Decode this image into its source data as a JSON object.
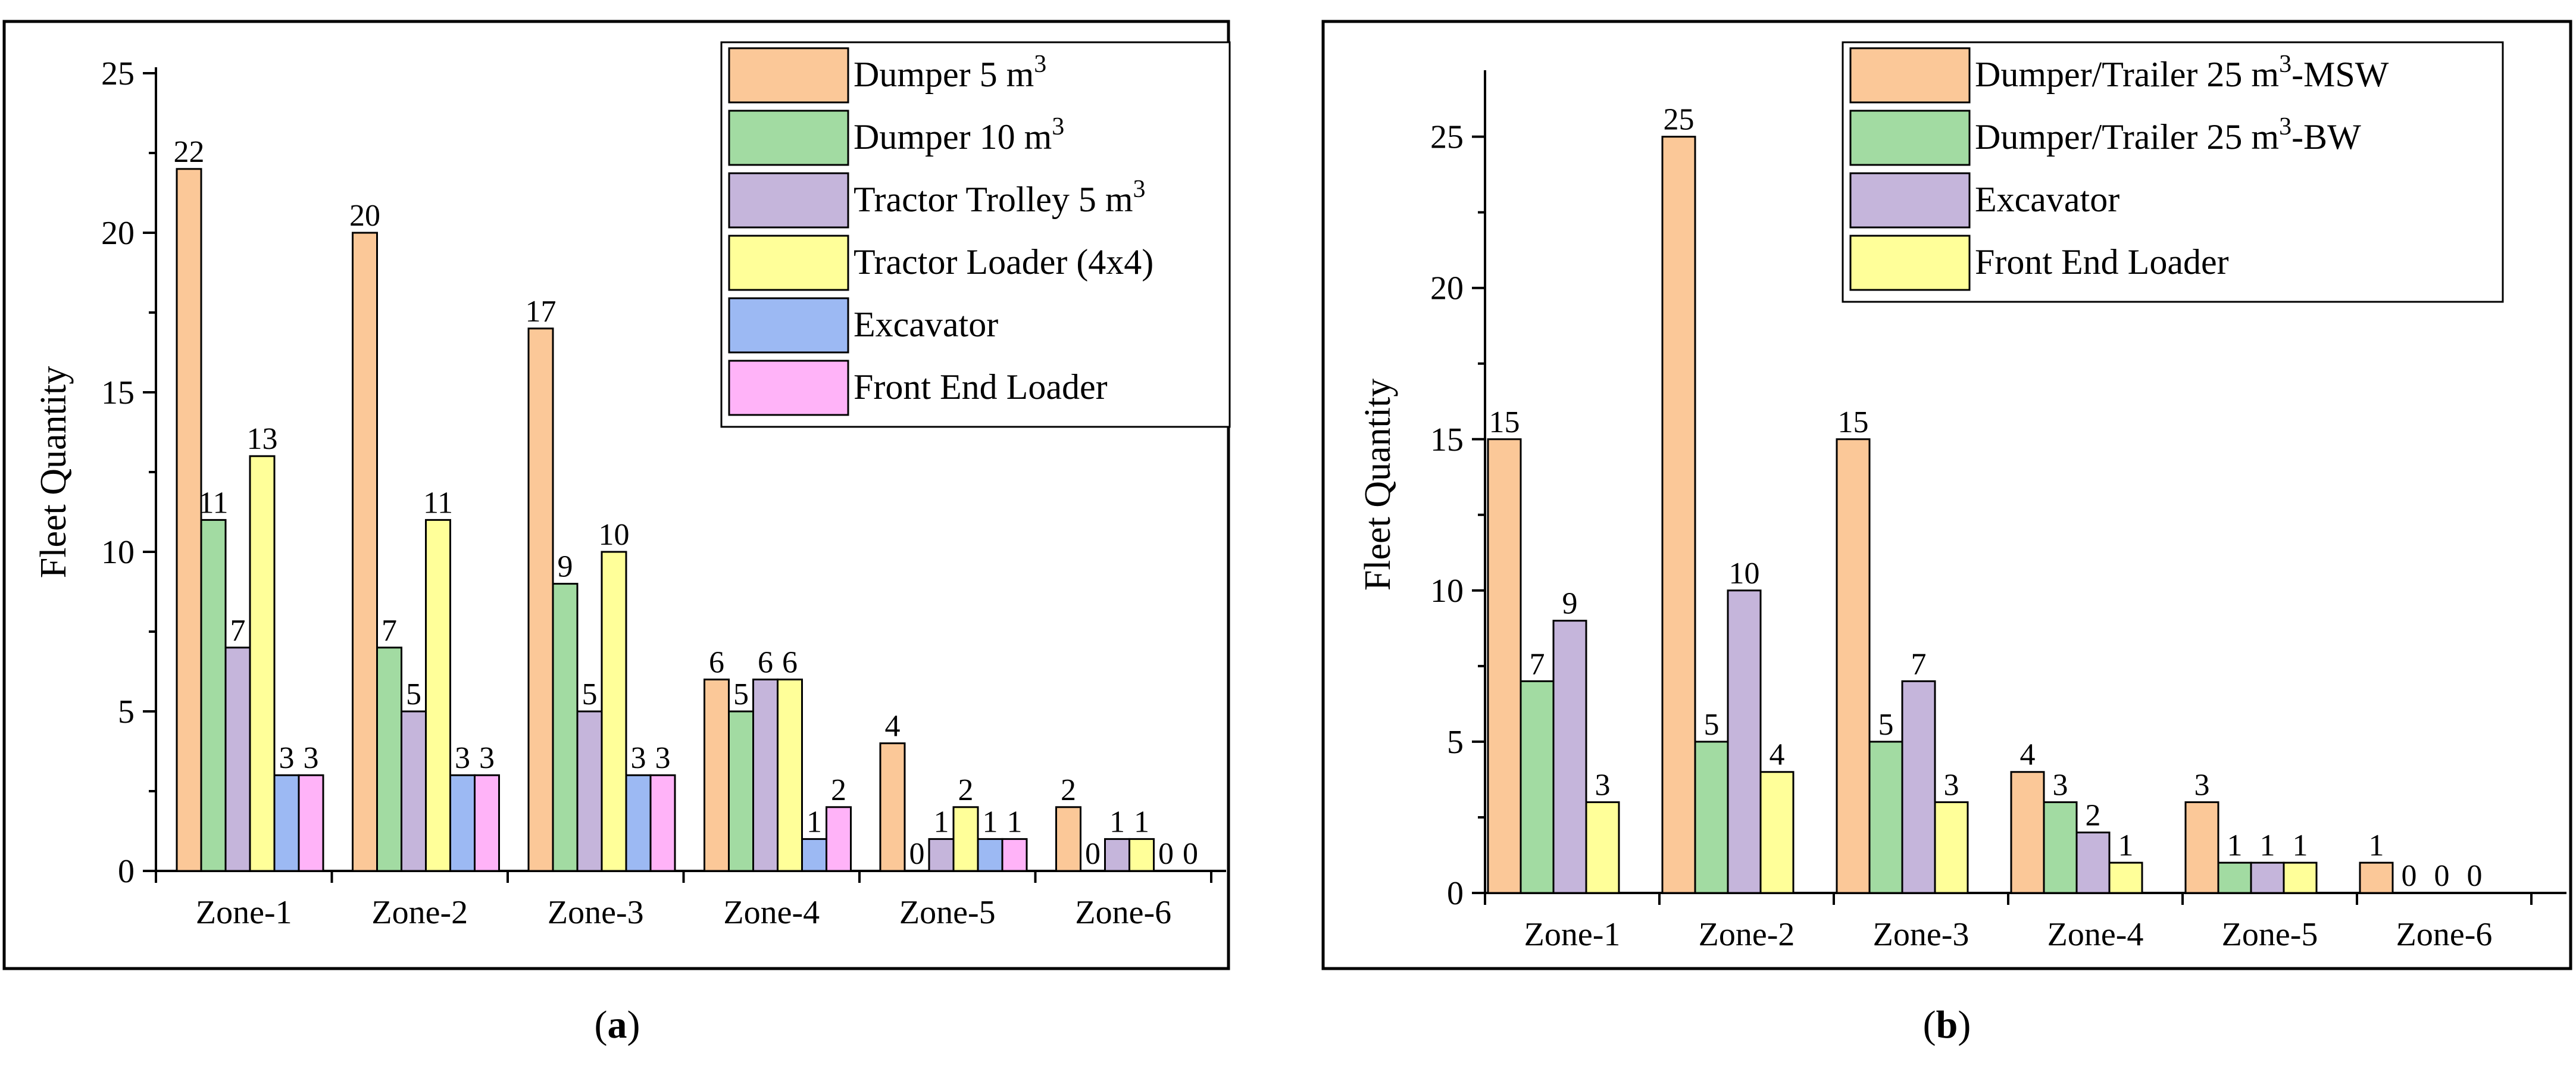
{
  "panels": [
    {
      "caption_open": "(",
      "caption_letter": "a",
      "caption_close": ")"
    },
    {
      "caption_open": "(",
      "caption_letter": "b",
      "caption_close": ")"
    }
  ],
  "chart_data": [
    {
      "type": "bar",
      "title": "",
      "xlabel": "",
      "ylabel": "Fleet Quantity",
      "ylim": [
        0,
        25
      ],
      "yticks": [
        0,
        5,
        10,
        15,
        20,
        25
      ],
      "grid": false,
      "legend_position": "top-right",
      "categories": [
        "Zone-1",
        "Zone-2",
        "Zone-3",
        "Zone-4",
        "Zone-5",
        "Zone-6"
      ],
      "series": [
        {
          "name": "Dumper 5 m",
          "sup": "3",
          "color": "#FBC898",
          "values": [
            22,
            20,
            17,
            6,
            4,
            2
          ]
        },
        {
          "name": "Dumper 10 m",
          "sup": "3",
          "color": "#A2DBA2",
          "values": [
            11,
            7,
            9,
            5,
            0,
            0
          ]
        },
        {
          "name": "Tractor Trolley 5 m",
          "sup": "3",
          "color": "#C5B5DB",
          "values": [
            7,
            5,
            5,
            6,
            1,
            1
          ]
        },
        {
          "name": "Tractor Loader (4x4)",
          "sup": "",
          "color": "#FFFF99",
          "values": [
            13,
            11,
            10,
            6,
            2,
            1
          ]
        },
        {
          "name": "Excavator",
          "sup": "",
          "color": "#9CB9F3",
          "values": [
            3,
            3,
            3,
            1,
            1,
            0
          ]
        },
        {
          "name": "Front End Loader",
          "sup": "",
          "color": "#FFB3F8",
          "values": [
            3,
            3,
            3,
            2,
            1,
            0
          ]
        }
      ]
    },
    {
      "type": "bar",
      "title": "",
      "xlabel": "",
      "ylabel": "Fleet Quantity",
      "ylim": [
        0,
        27
      ],
      "yticks": [
        0,
        5,
        10,
        15,
        20,
        25
      ],
      "grid": false,
      "legend_position": "top-right",
      "categories": [
        "Zone-1",
        "Zone-2",
        "Zone-3",
        "Zone-4",
        "Zone-5",
        "Zone-6"
      ],
      "series": [
        {
          "name": "Dumper/Trailer 25 m",
          "sup": "3",
          "suffix": "-MSW",
          "color": "#FBC898",
          "values": [
            15,
            25,
            15,
            4,
            3,
            1
          ]
        },
        {
          "name": "Dumper/Trailer 25 m",
          "sup": "3",
          "suffix": "-BW",
          "color": "#A2DBA2",
          "values": [
            7,
            5,
            5,
            3,
            1,
            0
          ]
        },
        {
          "name": "Excavator",
          "sup": "",
          "suffix": "",
          "color": "#C5B5DB",
          "values": [
            9,
            10,
            7,
            2,
            1,
            0
          ]
        },
        {
          "name": "Front End Loader",
          "sup": "",
          "suffix": "",
          "color": "#FFFF99",
          "values": [
            3,
            4,
            3,
            1,
            1,
            0
          ]
        }
      ]
    }
  ]
}
